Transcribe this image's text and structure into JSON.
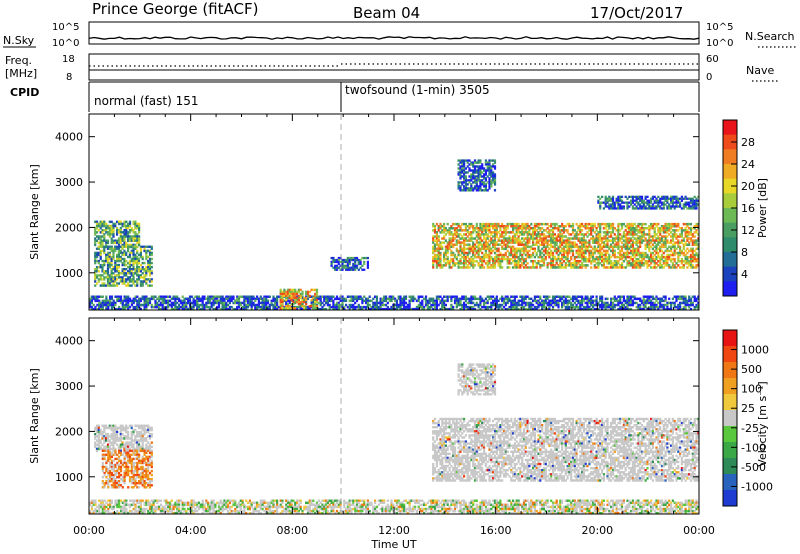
{
  "header": {
    "title": "Prince George (fitACF)",
    "beam": "Beam 04",
    "date": "17/Oct/2017"
  },
  "top_panels": {
    "nsky_label": "N.Sky",
    "nsky_ticks": [
      "10^5",
      "10^0"
    ],
    "nsearch_label": "N.Search",
    "nsearch_ticks": [
      "10^5",
      "10^0"
    ],
    "freq_label": "Freq.",
    "freq_unit": "[MHz]",
    "freq_ticks": [
      "18",
      "8"
    ],
    "nave_label": "Nave",
    "nave_ticks": [
      "60",
      "0"
    ],
    "cpid_label": "CPID",
    "cpid_segments": [
      "normal (fast) 151",
      "twofsound (1-min) 3505"
    ]
  },
  "chart_data": [
    {
      "type": "heatmap",
      "name": "power",
      "ylabel": "Slant Range [km]",
      "xlabel": "Time UT",
      "xlim": [
        "00:00",
        "24:00"
      ],
      "ylim": [
        180,
        4500
      ],
      "x_ticks": [
        "00:00",
        "04:00",
        "08:00",
        "12:00",
        "16:00",
        "20:00",
        "00:00"
      ],
      "y_ticks": [
        1000,
        2000,
        3000,
        4000
      ],
      "colorbar": {
        "label": "Power [dB]",
        "ticks": [
          "28",
          "24",
          "20",
          "16",
          "12",
          "8",
          "4"
        ],
        "colors": [
          "#1e1ef0",
          "#1b42bd",
          "#236e96",
          "#2e8b6b",
          "#4b9e62",
          "#6db956",
          "#a8cc3a",
          "#e8d726",
          "#f0ab25",
          "#f07d22",
          "#ee4a1a",
          "#e8141a"
        ]
      },
      "regions": [
        {
          "t0": 0.2,
          "t1": 2.0,
          "r0": 1550,
          "r1": 2150,
          "level": "mixed"
        },
        {
          "t0": 0.2,
          "t1": 2.5,
          "r0": 700,
          "r1": 1600,
          "level": "mixed"
        },
        {
          "t0": 0.0,
          "t1": 24.0,
          "r0": 180,
          "r1": 500,
          "level": "low"
        },
        {
          "t0": 7.5,
          "t1": 9.0,
          "r0": 200,
          "r1": 650,
          "level": "high"
        },
        {
          "t0": 9.5,
          "t1": 11.0,
          "r0": 1050,
          "r1": 1350,
          "level": "low"
        },
        {
          "t0": 13.5,
          "t1": 24.0,
          "r0": 1100,
          "r1": 2100,
          "level": "high"
        },
        {
          "t0": 14.5,
          "t1": 16.0,
          "r0": 2800,
          "r1": 3500,
          "level": "low"
        },
        {
          "t0": 20.0,
          "t1": 24.0,
          "r0": 2400,
          "r1": 2700,
          "level": "low"
        }
      ]
    },
    {
      "type": "heatmap",
      "name": "velocity",
      "ylabel": "Slant Range [km]",
      "xlabel": "Time UT",
      "xlim": [
        "00:00",
        "24:00"
      ],
      "ylim": [
        180,
        4500
      ],
      "x_ticks": [
        "00:00",
        "04:00",
        "08:00",
        "12:00",
        "16:00",
        "20:00",
        "00:00"
      ],
      "y_ticks": [
        1000,
        2000,
        3000,
        4000
      ],
      "colorbar": {
        "label": "Velocity [m s⁻¹]",
        "ticks": [
          "1000",
          "500",
          "100",
          "25",
          "-25",
          "-100",
          "-500",
          "-1000"
        ],
        "colors": [
          "#1e3cd2",
          "#2864be",
          "#2e8b57",
          "#3aa846",
          "#5ac83c",
          "#c8c8c8",
          "#f0c83c",
          "#f0a020",
          "#f07814",
          "#f0460f",
          "#e81414"
        ]
      },
      "regions": [
        {
          "t0": 0.2,
          "t1": 2.5,
          "r0": 1550,
          "r1": 2150,
          "level": "grey"
        },
        {
          "t0": 0.5,
          "t1": 2.5,
          "r0": 750,
          "r1": 1600,
          "level": "orange"
        },
        {
          "t0": 0.0,
          "t1": 24.0,
          "r0": 180,
          "r1": 500,
          "level": "mixed"
        },
        {
          "t0": 13.5,
          "t1": 24.0,
          "r0": 900,
          "r1": 2300,
          "level": "grey"
        },
        {
          "t0": 14.5,
          "t1": 16.0,
          "r0": 2800,
          "r1": 3500,
          "level": "grey"
        }
      ]
    }
  ]
}
